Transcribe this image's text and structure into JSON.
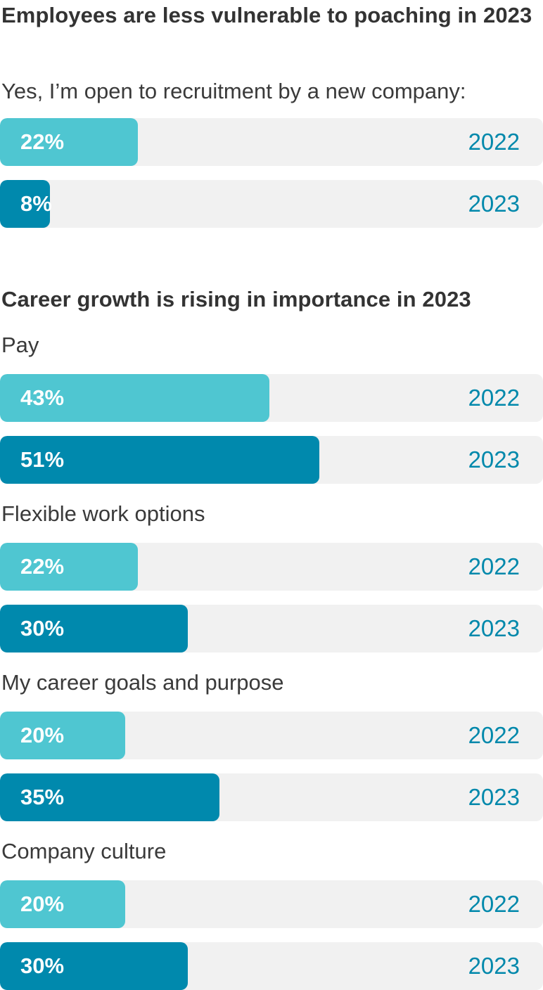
{
  "colors": {
    "y2022": "#4fc6d1",
    "y2023": "#0089ad",
    "track": "#f1f1f1",
    "year_text": "#0088ab"
  },
  "chart_data": [
    {
      "type": "bar",
      "orientation": "horizontal",
      "title": "Employees are less vulnerable to poaching in 2023",
      "value_unit": "%",
      "xlim": [
        0,
        100
      ],
      "groups": [
        {
          "label": "Yes, I’m open to recruitment by a new company:",
          "bars": [
            {
              "year": "2022",
              "value": 22,
              "label": "22%"
            },
            {
              "year": "2023",
              "value": 8,
              "label": "8%"
            }
          ]
        }
      ]
    },
    {
      "type": "bar",
      "orientation": "horizontal",
      "title": "Career growth is rising in importance in 2023",
      "value_unit": "%",
      "xlim": [
        0,
        100
      ],
      "groups": [
        {
          "label": "Pay",
          "bars": [
            {
              "year": "2022",
              "value": 43,
              "label": "43%"
            },
            {
              "year": "2023",
              "value": 51,
              "label": "51%"
            }
          ]
        },
        {
          "label": "Flexible work options",
          "bars": [
            {
              "year": "2022",
              "value": 22,
              "label": "22%"
            },
            {
              "year": "2023",
              "value": 30,
              "label": "30%"
            }
          ]
        },
        {
          "label": "My career goals and purpose",
          "bars": [
            {
              "year": "2022",
              "value": 20,
              "label": "20%"
            },
            {
              "year": "2023",
              "value": 35,
              "label": "35%"
            }
          ]
        },
        {
          "label": "Company culture",
          "bars": [
            {
              "year": "2022",
              "value": 20,
              "label": "20%"
            },
            {
              "year": "2023",
              "value": 30,
              "label": "30%"
            }
          ]
        }
      ]
    }
  ]
}
